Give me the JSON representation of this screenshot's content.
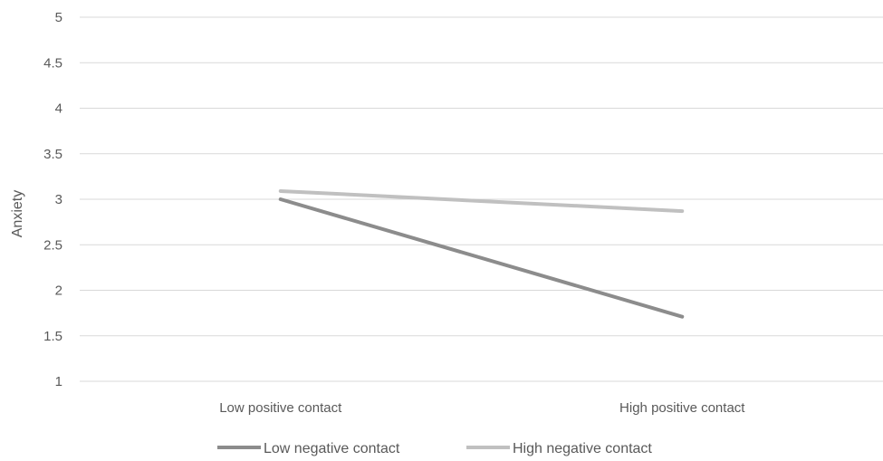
{
  "chart_data": {
    "type": "line",
    "categories": [
      "Low positive contact",
      "High positive contact"
    ],
    "series": [
      {
        "name": "Low negative contact",
        "values": [
          3.0,
          1.71
        ],
        "color": "#8c8c8c"
      },
      {
        "name": "High negative contact",
        "values": [
          3.09,
          2.87
        ],
        "color": "#c0c0c0"
      }
    ],
    "ylabel": "Anxiety",
    "xlabel": "",
    "ylim": [
      1,
      5
    ],
    "yticks": [
      "1",
      "1.5",
      "2",
      "2.5",
      "3",
      "3.5",
      "4",
      "4.5",
      "5"
    ],
    "grid": true,
    "legend_position": "bottom"
  }
}
